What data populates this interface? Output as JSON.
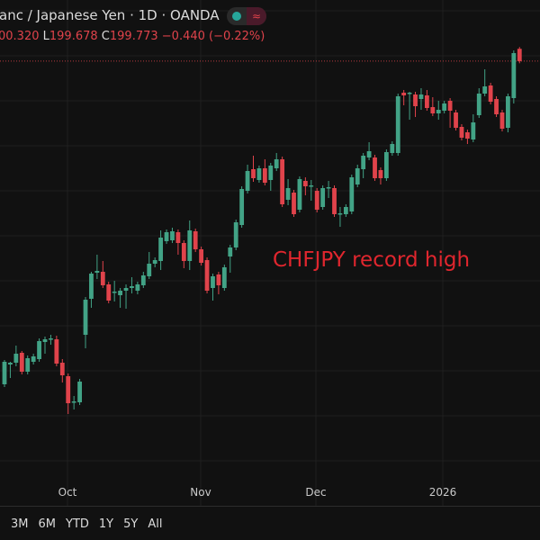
{
  "header": {
    "title": "anc / Japanese Yen · 1D · OANDA",
    "ohlc": {
      "open_value": "00.320",
      "low_label": "L",
      "low_value": "199.678",
      "close_label": "C",
      "close_value": "199.773",
      "change": "−0.440 (−0.22%)"
    },
    "status_dot_color": "#26a69a",
    "wave_icon": "≈"
  },
  "annotation": "CHFJPY record high",
  "time_axis": [
    "Oct",
    "Nov",
    "Dec",
    "2026"
  ],
  "range_buttons": [
    "3M",
    "6M",
    "YTD",
    "1Y",
    "5Y",
    "All"
  ],
  "colors": {
    "up": "#42a386",
    "down": "#e0434b",
    "background": "#111111",
    "annotation": "#e0262e"
  },
  "chart_data": {
    "type": "candlestick",
    "interval": "1D",
    "last_price_line": 199.773,
    "grid": true,
    "x_ticks": [
      "Oct",
      "Nov",
      "Dec",
      "2026"
    ],
    "ohlc": [
      [
        185.41,
        186.49,
        185.29,
        186.41
      ],
      [
        186.29,
        186.41,
        185.69,
        186.37
      ],
      [
        186.37,
        187.13,
        186.21,
        186.77
      ],
      [
        186.81,
        186.89,
        185.85,
        185.97
      ],
      [
        185.97,
        186.69,
        185.85,
        186.57
      ],
      [
        186.41,
        186.77,
        186.29,
        186.65
      ],
      [
        186.53,
        187.45,
        186.41,
        187.33
      ],
      [
        187.29,
        187.53,
        186.77,
        187.41
      ],
      [
        187.41,
        187.61,
        187.17,
        187.45
      ],
      [
        187.41,
        187.57,
        186.21,
        186.33
      ],
      [
        186.37,
        186.53,
        185.49,
        185.81
      ],
      [
        185.77,
        185.89,
        184.09,
        184.57
      ],
      [
        184.61,
        184.89,
        184.29,
        184.65
      ],
      [
        184.61,
        185.65,
        184.49,
        185.53
      ],
      [
        187.61,
        189.29,
        187.01,
        189.17
      ],
      [
        189.21,
        190.41,
        188.81,
        190.33
      ],
      [
        190.37,
        191.17,
        190.09,
        190.45
      ],
      [
        190.41,
        190.89,
        189.69,
        189.81
      ],
      [
        189.85,
        189.97,
        189.01,
        189.13
      ],
      [
        189.49,
        190.01,
        189.09,
        189.53
      ],
      [
        189.37,
        189.69,
        188.81,
        189.57
      ],
      [
        189.57,
        189.85,
        188.77,
        189.69
      ],
      [
        189.69,
        190.17,
        189.45,
        189.77
      ],
      [
        189.57,
        189.97,
        189.41,
        189.85
      ],
      [
        189.81,
        190.41,
        189.69,
        190.25
      ],
      [
        190.21,
        191.29,
        190.09,
        190.77
      ],
      [
        190.77,
        191.05,
        190.61,
        190.93
      ],
      [
        190.89,
        192.25,
        190.49,
        191.93
      ],
      [
        191.77,
        192.29,
        191.65,
        192.17
      ],
      [
        191.81,
        192.37,
        191.69,
        192.21
      ],
      [
        192.17,
        192.29,
        191.17,
        191.69
      ],
      [
        191.69,
        191.81,
        190.57,
        190.89
      ],
      [
        190.89,
        192.69,
        190.49,
        192.25
      ],
      [
        192.21,
        192.33,
        191.29,
        191.41
      ],
      [
        191.41,
        191.53,
        190.69,
        190.81
      ],
      [
        190.93,
        191.05,
        189.45,
        189.57
      ],
      [
        189.69,
        190.33,
        189.13,
        190.21
      ],
      [
        190.29,
        190.41,
        189.41,
        189.81
      ],
      [
        189.69,
        190.73,
        189.57,
        190.61
      ],
      [
        191.09,
        191.61,
        190.37,
        191.49
      ],
      [
        191.49,
        192.73,
        191.37,
        192.61
      ],
      [
        192.49,
        194.21,
        192.37,
        194.09
      ],
      [
        194.01,
        195.17,
        193.89,
        194.89
      ],
      [
        194.97,
        195.57,
        194.41,
        194.57
      ],
      [
        194.49,
        195.13,
        194.37,
        195.01
      ],
      [
        195.01,
        195.41,
        194.25,
        194.37
      ],
      [
        194.49,
        195.25,
        194.01,
        195.13
      ],
      [
        195.01,
        195.69,
        194.89,
        195.41
      ],
      [
        195.41,
        195.53,
        193.29,
        193.41
      ],
      [
        193.61,
        194.53,
        193.37,
        194.13
      ],
      [
        193.93,
        194.05,
        192.85,
        192.97
      ],
      [
        193.17,
        194.65,
        193.05,
        194.53
      ],
      [
        194.45,
        194.61,
        193.81,
        194.21
      ],
      [
        194.21,
        194.49,
        193.57,
        194.25
      ],
      [
        194.01,
        194.13,
        193.05,
        193.17
      ],
      [
        193.29,
        194.25,
        193.17,
        194.13
      ],
      [
        194.13,
        194.45,
        193.69,
        194.17
      ],
      [
        194.13,
        194.25,
        192.85,
        192.97
      ],
      [
        193.01,
        193.29,
        192.41,
        193.01
      ],
      [
        192.97,
        193.41,
        192.85,
        193.29
      ],
      [
        193.09,
        194.73,
        192.97,
        194.61
      ],
      [
        194.29,
        195.17,
        194.17,
        195.01
      ],
      [
        194.97,
        195.69,
        194.57,
        195.57
      ],
      [
        195.49,
        196.17,
        195.37,
        195.77
      ],
      [
        195.49,
        195.61,
        194.45,
        194.57
      ],
      [
        194.93,
        195.05,
        194.29,
        194.57
      ],
      [
        194.57,
        195.85,
        194.45,
        195.73
      ],
      [
        195.69,
        196.21,
        195.57,
        196.09
      ],
      [
        195.69,
        198.33,
        195.57,
        198.21
      ],
      [
        198.37,
        198.49,
        197.81,
        198.25
      ],
      [
        198.37,
        198.41,
        197.17,
        198.37
      ],
      [
        198.29,
        198.41,
        197.29,
        197.77
      ],
      [
        198.09,
        198.57,
        197.61,
        198.29
      ],
      [
        198.25,
        198.49,
        197.57,
        197.69
      ],
      [
        197.73,
        198.17,
        197.33,
        197.45
      ],
      [
        197.45,
        198.01,
        197.17,
        197.61
      ],
      [
        197.57,
        198.01,
        197.45,
        197.89
      ],
      [
        198.01,
        198.13,
        196.81,
        197.57
      ],
      [
        197.49,
        197.61,
        196.69,
        196.81
      ],
      [
        196.85,
        196.97,
        196.25,
        196.37
      ],
      [
        196.61,
        196.73,
        196.09,
        196.33
      ],
      [
        196.29,
        197.41,
        196.17,
        197.05
      ],
      [
        197.37,
        198.57,
        197.25,
        198.33
      ],
      [
        198.33,
        199.41,
        198.21,
        198.65
      ],
      [
        198.69,
        198.81,
        197.85,
        197.97
      ],
      [
        198.09,
        198.21,
        197.29,
        197.41
      ],
      [
        197.49,
        197.61,
        196.65,
        196.77
      ],
      [
        196.81,
        198.33,
        196.61,
        198.21
      ],
      [
        198.13,
        200.25,
        197.89,
        200.13
      ],
      [
        200.32,
        200.4,
        199.678,
        199.773
      ]
    ]
  }
}
